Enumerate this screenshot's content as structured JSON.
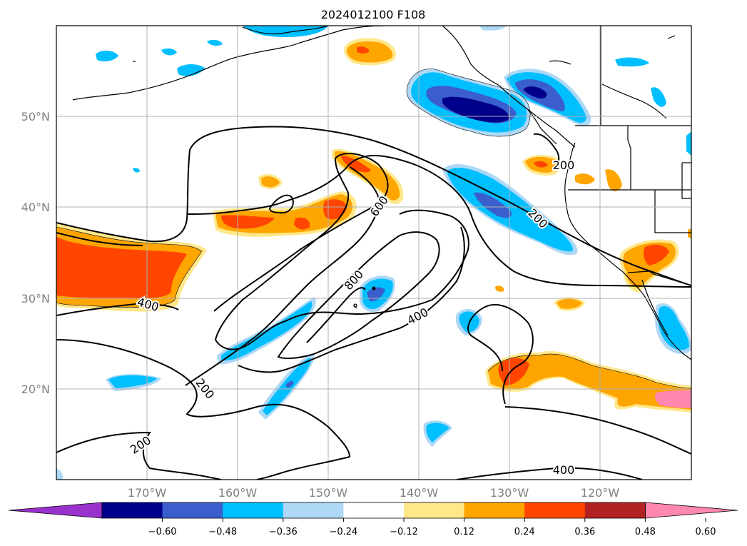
{
  "title": "2024012100 F108",
  "lat_labels": [
    "50°N",
    "40°N",
    "30°N",
    "20°N"
  ],
  "lon_labels": [
    "170°W",
    "160°W",
    "150°W",
    "140°W",
    "130°W",
    "120°W"
  ],
  "contour_labels": [
    "200",
    "200",
    "200",
    "400",
    "400",
    "400",
    "600",
    "800"
  ],
  "colorbar": {
    "colors": [
      "#9932cc",
      "#00008b",
      "#3a5fcd",
      "#00bfff",
      "#add8f6",
      "#ffffff",
      "#ffe78a",
      "#ffa500",
      "#ff4500",
      "#b22222",
      "#ff88b0"
    ],
    "tick_labels": [
      "−0.60",
      "−0.48",
      "−0.36",
      "−0.24",
      "−0.12",
      "0.12",
      "0.24",
      "0.36",
      "0.48",
      "0.60"
    ]
  },
  "shading_colors": {
    "neg_light": "#add8f6",
    "neg_mid": "#00bfff",
    "neg_strong": "#3a5fcd",
    "neg_max": "#00008b",
    "pos_light": "#ffe78a",
    "pos_mid": "#ffa500",
    "pos_strong": "#ff4500"
  }
}
